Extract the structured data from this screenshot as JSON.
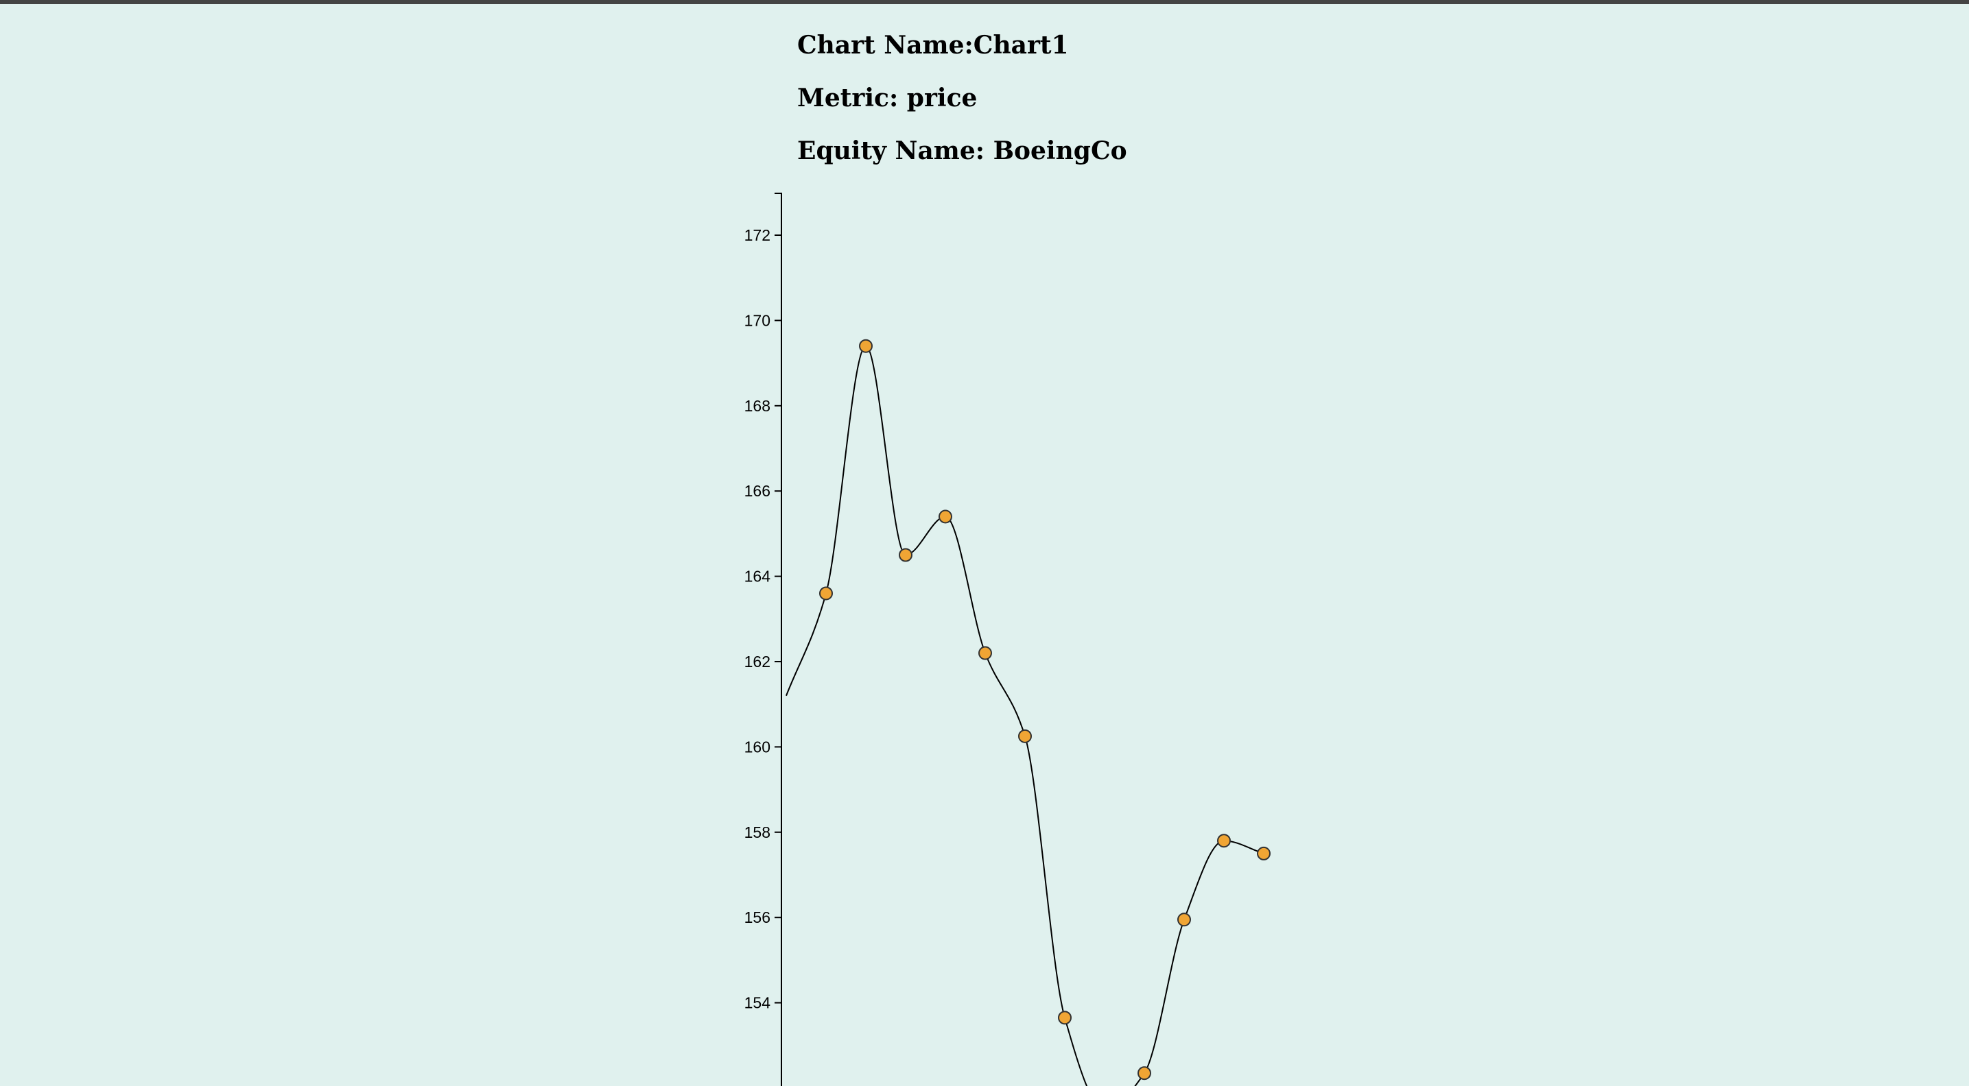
{
  "header": {
    "chart_name": "Chart Name:Chart1",
    "metric": "Metric: price",
    "equity_name": "Equity Name: BoeingCo"
  },
  "colors": {
    "background": "#e0f1ee",
    "line": "#000000",
    "point_fill": "#f0a534",
    "point_stroke": "#333333"
  },
  "chart_data": {
    "type": "line",
    "title": "",
    "xlabel": "",
    "ylabel": "",
    "curve": "smooth",
    "yticks": [
      154,
      156,
      158,
      160,
      162,
      164,
      166,
      168,
      170,
      172
    ],
    "ylim": [
      151.2,
      173
    ],
    "series": [
      {
        "values": [
          161.2,
          163.6,
          169.4,
          164.5,
          165.4,
          162.2,
          160.25,
          153.65,
          151.5,
          152.35,
          155.95,
          157.8,
          157.5
        ],
        "markers": [
          false,
          true,
          true,
          true,
          true,
          true,
          true,
          true,
          false,
          true,
          true,
          true,
          true
        ]
      }
    ]
  }
}
